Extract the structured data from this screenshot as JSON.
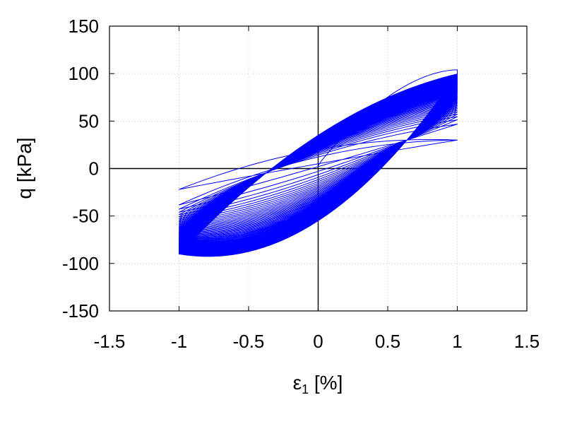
{
  "chart_data": {
    "type": "line",
    "xlabel": "ε",
    "xlabel_subscript": "1",
    "xlabel_unit": " [%]",
    "ylabel": "q [kPa]",
    "xlim": [
      -1.5,
      1.5
    ],
    "ylim": [
      -150,
      150
    ],
    "xticks": [
      -1.5,
      -1,
      -0.5,
      0,
      0.5,
      1,
      1.5
    ],
    "xtick_labels": [
      "-1.5",
      "-1",
      "-0.5",
      "0",
      "0.5",
      "1",
      "1.5"
    ],
    "yticks": [
      -150,
      -100,
      -50,
      0,
      50,
      100,
      150
    ],
    "ytick_labels": [
      "-150",
      "-100",
      "-50",
      "0",
      "50",
      "100",
      "150"
    ],
    "grid": true,
    "zero_lines": true,
    "series_color": "#0000ff",
    "strain_amplitude": 1,
    "cycles": 60,
    "first_cycle_peak_q": 100,
    "first_cycle_trough_q": -90,
    "final_cycle_peak_q": 30,
    "final_cycle_trough_q": -22,
    "final_cycle_q_at_zero_strain_loading": 5,
    "final_cycle_q_at_zero_strain_unloading": 20
  }
}
